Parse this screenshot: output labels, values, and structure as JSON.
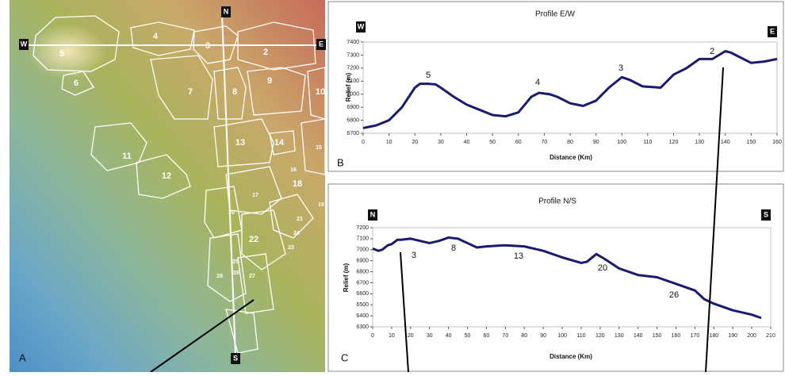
{
  "map": {
    "panel": "A",
    "compass": {
      "north": "N",
      "south": "S",
      "west": "W",
      "east": "E"
    },
    "regions": [
      "5",
      "6",
      "4",
      "3",
      "2",
      "7",
      "8",
      "9",
      "10",
      "11",
      "12",
      "13",
      "14",
      "15",
      "16",
      "17",
      "18",
      "19",
      "20",
      "21",
      "22",
      "23",
      "24",
      "25",
      "26",
      "27",
      "28"
    ]
  },
  "chart_data": [
    {
      "type": "line",
      "title": "Profile E/W",
      "panel": "B",
      "start_label": "W",
      "end_label": "E",
      "y_label": "Relief (m)",
      "x_label": "Distance (Km)",
      "annotations": [
        "5",
        "4",
        "3",
        "2"
      ],
      "xlim": [
        0,
        160
      ],
      "xticks": [
        0,
        10,
        20,
        30,
        40,
        50,
        60,
        70,
        80,
        90,
        100,
        110,
        120,
        130,
        140,
        150,
        160
      ],
      "ylim": [
        6700,
        7400
      ],
      "yticks": [
        6700,
        6800,
        6900,
        7000,
        7100,
        7200,
        7300,
        7400
      ],
      "x": [
        0,
        5,
        10,
        15,
        20,
        22,
        25,
        28,
        30,
        35,
        40,
        45,
        50,
        55,
        60,
        65,
        68,
        72,
        75,
        80,
        85,
        90,
        95,
        100,
        103,
        108,
        115,
        120,
        125,
        130,
        135,
        140,
        142,
        150,
        155,
        160
      ],
      "series": [
        {
          "color": "#1a1a6e",
          "values": [
            6740,
            6760,
            6800,
            6900,
            7050,
            7080,
            7080,
            7075,
            7050,
            6980,
            6920,
            6880,
            6840,
            6830,
            6860,
            6980,
            7010,
            7000,
            6980,
            6930,
            6910,
            6950,
            7050,
            7130,
            7110,
            7060,
            7050,
            7150,
            7200,
            7270,
            7270,
            7330,
            7320,
            7240,
            7250,
            7270
          ]
        }
      ]
    },
    {
      "type": "line",
      "title": "Profile N/S",
      "panel": "C",
      "start_label": "N",
      "end_label": "S",
      "y_label": "Relief (m)",
      "x_label": "Distance (Km)",
      "annotations": [
        "3",
        "8",
        "13",
        "20",
        "26"
      ],
      "xlim": [
        0,
        210
      ],
      "xticks": [
        0,
        10,
        20,
        30,
        40,
        50,
        60,
        70,
        80,
        90,
        100,
        110,
        120,
        130,
        140,
        150,
        160,
        170,
        180,
        190,
        200,
        210
      ],
      "ylim": [
        6300,
        7200
      ],
      "yticks": [
        6300,
        6400,
        6500,
        6600,
        6700,
        6800,
        6900,
        7000,
        7100,
        7200
      ],
      "x": [
        0,
        3,
        5,
        8,
        10,
        13,
        15,
        20,
        25,
        30,
        35,
        40,
        45,
        50,
        55,
        60,
        70,
        80,
        90,
        100,
        110,
        113,
        118,
        122,
        130,
        140,
        150,
        160,
        170,
        175,
        180,
        190,
        200,
        205
      ],
      "series": [
        {
          "color": "#1a1a6e",
          "values": [
            7010,
            6990,
            7000,
            7040,
            7050,
            7090,
            7090,
            7100,
            7080,
            7060,
            7080,
            7110,
            7100,
            7060,
            7020,
            7030,
            7040,
            7030,
            6990,
            6930,
            6880,
            6890,
            6960,
            6920,
            6830,
            6770,
            6750,
            6690,
            6630,
            6550,
            6510,
            6450,
            6410,
            6380
          ]
        }
      ]
    }
  ]
}
